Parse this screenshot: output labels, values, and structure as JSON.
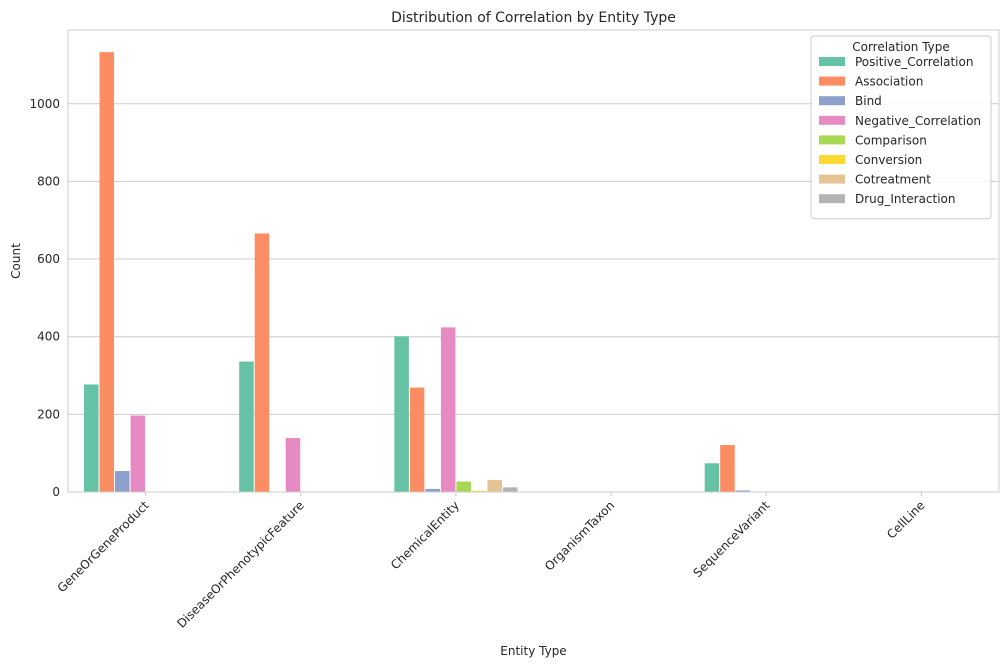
{
  "chart_data": {
    "type": "bar",
    "title": "Distribution of Correlation by Entity Type",
    "xlabel": "Entity Type",
    "ylabel": "Count",
    "ylim": [
      0,
      1190
    ],
    "yticks": [
      0,
      200,
      400,
      600,
      800,
      1000
    ],
    "grid": true,
    "legend": {
      "title": "Correlation Type",
      "placement": "top-right"
    },
    "categories": [
      "GeneOrGeneProduct",
      "DiseaseOrPhenotypicFeature",
      "ChemicalEntity",
      "OrganismTaxon",
      "SequenceVariant",
      "CellLine"
    ],
    "series": [
      {
        "name": "Positive_Correlation",
        "color": "#66c2a5",
        "values": [
          277,
          336,
          401,
          0,
          74,
          0
        ]
      },
      {
        "name": "Association",
        "color": "#fc8d62",
        "values": [
          1133,
          666,
          269,
          0,
          121,
          0
        ]
      },
      {
        "name": "Bind",
        "color": "#8da0cb",
        "values": [
          54,
          0,
          8,
          0,
          4,
          0
        ]
      },
      {
        "name": "Negative_Correlation",
        "color": "#e78ac3",
        "values": [
          197,
          139,
          424,
          0,
          0,
          0
        ]
      },
      {
        "name": "Comparison",
        "color": "#a6d854",
        "values": [
          0,
          0,
          27,
          0,
          0,
          0
        ]
      },
      {
        "name": "Conversion",
        "color": "#ffd92f",
        "values": [
          0,
          0,
          3,
          0,
          0,
          0
        ]
      },
      {
        "name": "Cotreatment",
        "color": "#e5c494",
        "values": [
          0,
          0,
          31,
          0,
          0,
          0
        ]
      },
      {
        "name": "Drug_Interaction",
        "color": "#b3b3b3",
        "values": [
          0,
          0,
          12,
          0,
          0,
          0
        ]
      }
    ]
  }
}
